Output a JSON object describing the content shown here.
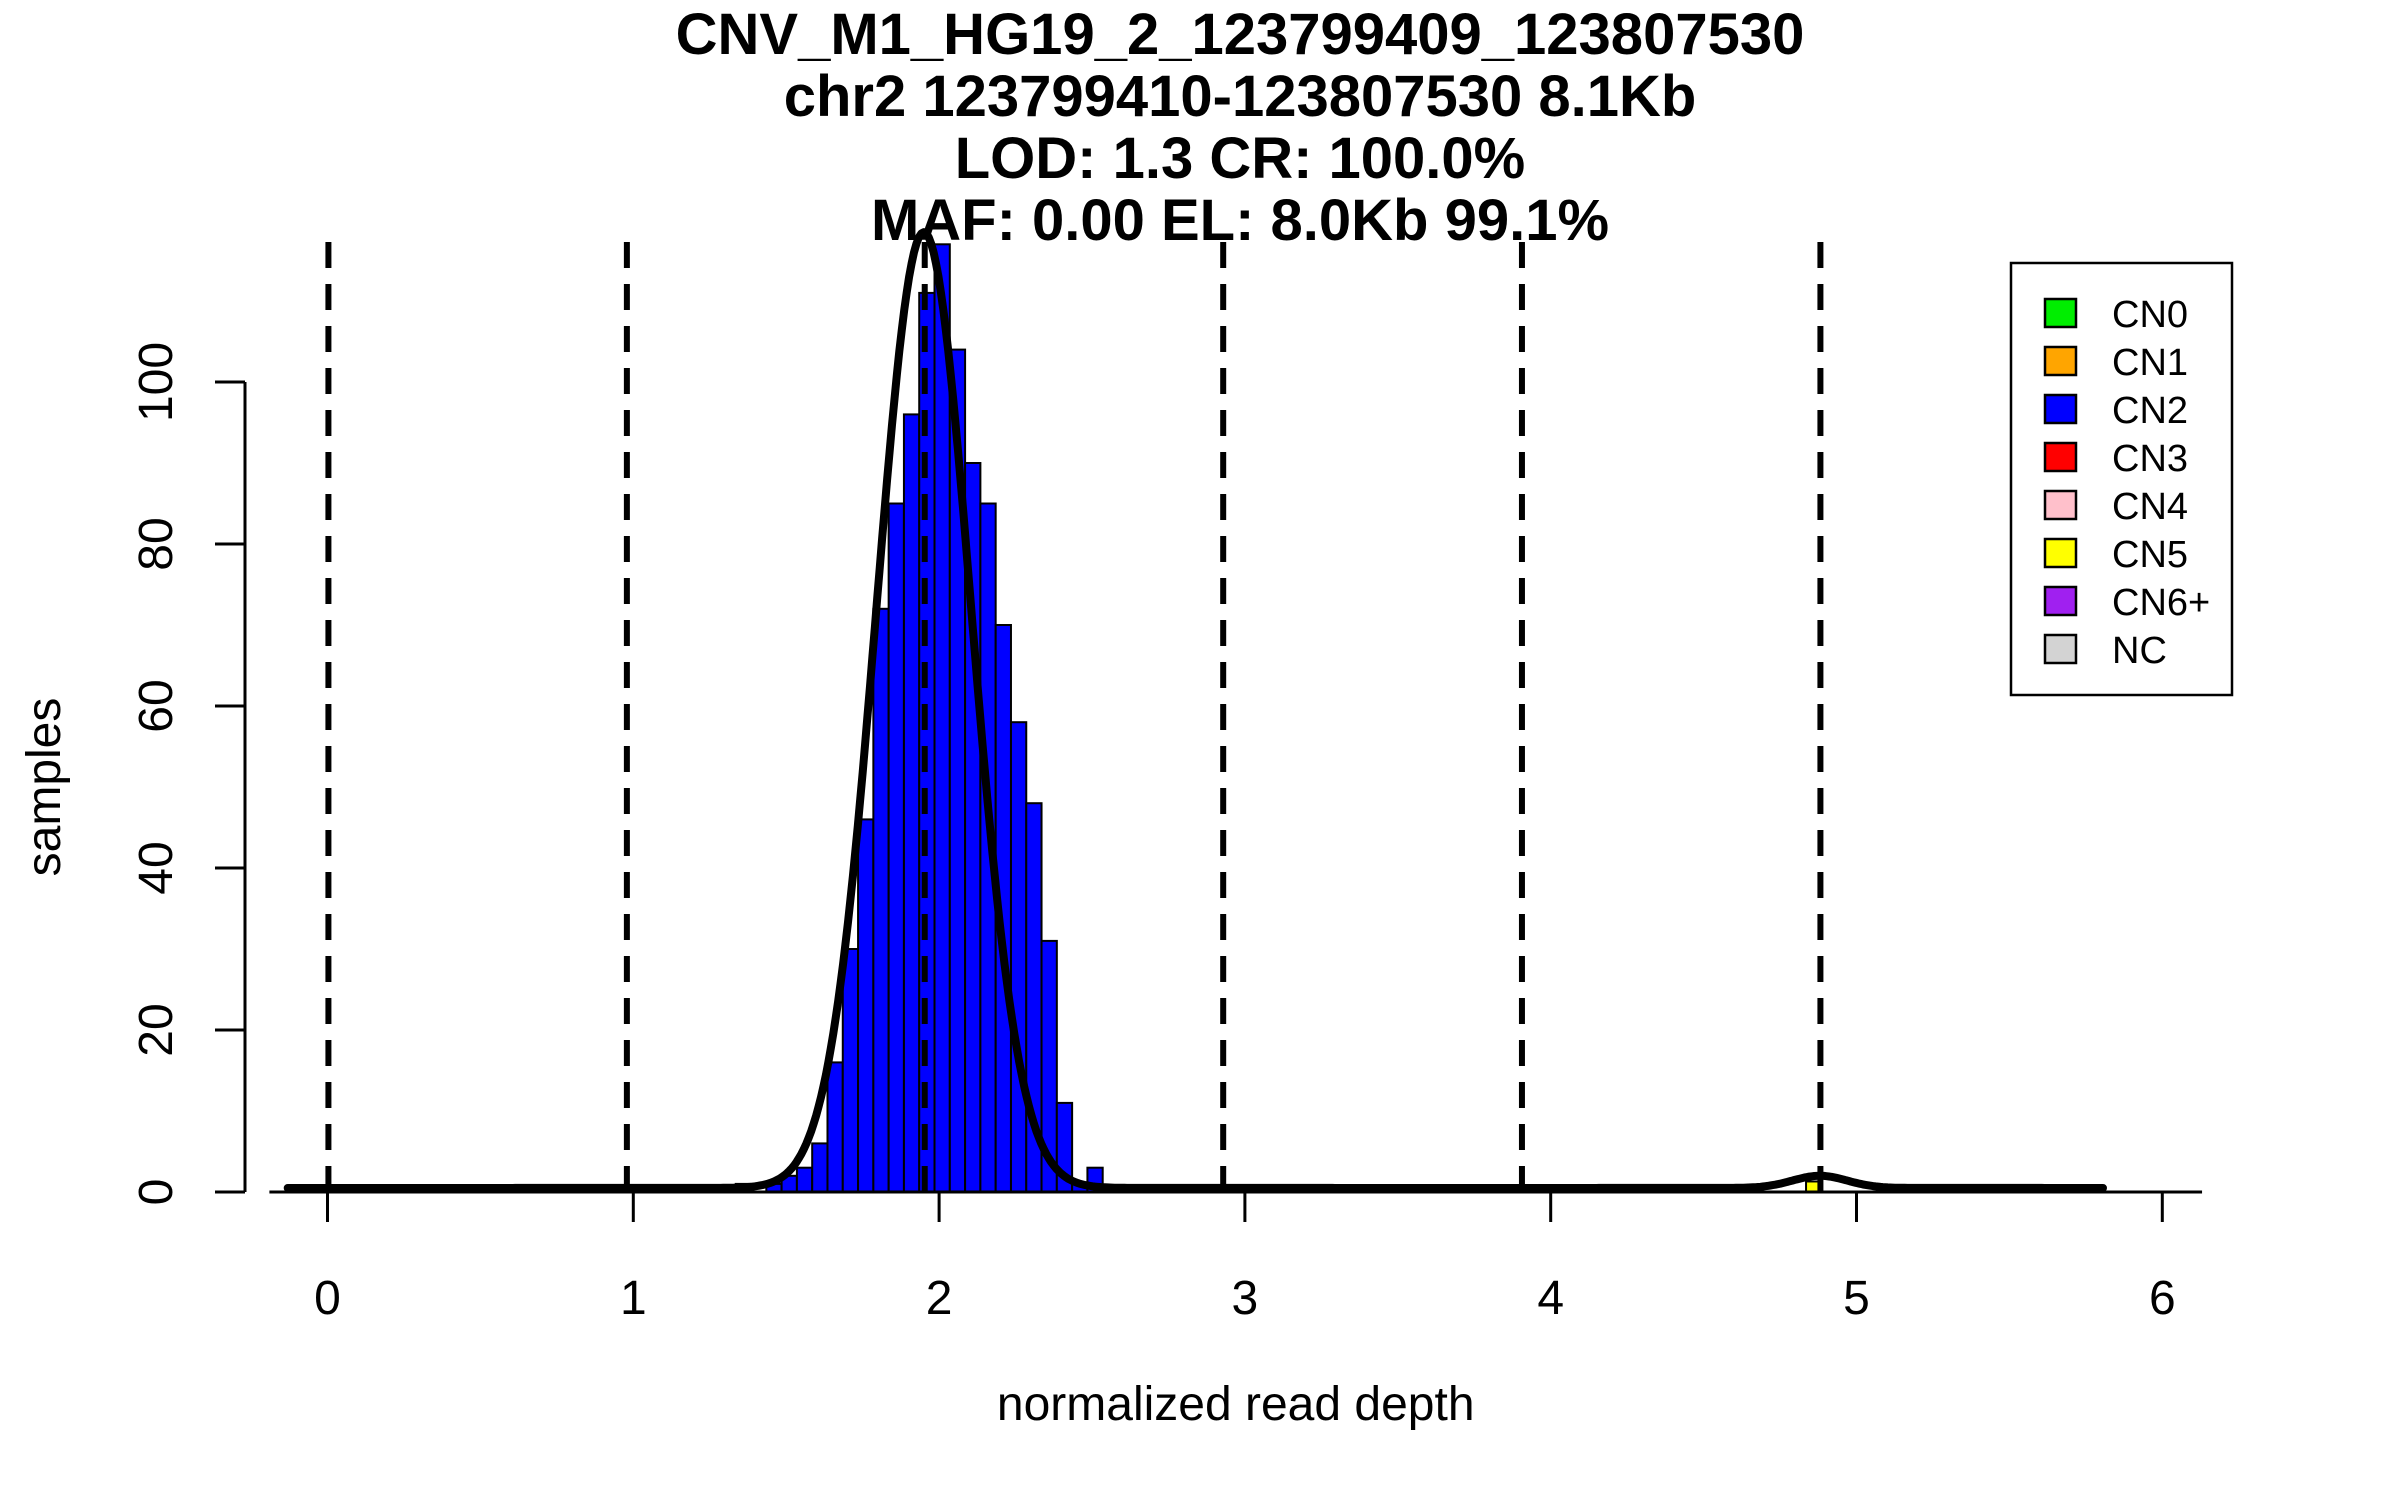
{
  "title": {
    "line1": "CNV_M1_HG19_2_123799409_123807530",
    "line2": "chr2 123799410-123807530 8.1Kb",
    "line3": "LOD: 1.3 CR: 100.0%",
    "line4": "MAF: 0.00 EL: 8.0Kb 99.1%"
  },
  "chart_data": {
    "type": "bar",
    "subtype": "histogram",
    "title": "CNV_M1_HG19_2_123799409_123807530",
    "xlabel": "normalized read depth",
    "ylabel": "samples",
    "x_ticks": [
      0,
      1,
      2,
      3,
      4,
      5,
      6
    ],
    "y_ticks": [
      0,
      20,
      40,
      60,
      80,
      100
    ],
    "xlim": [
      -0.19,
      6.13
    ],
    "ylim": [
      0,
      119
    ],
    "grid": "off",
    "bin_width": 0.05,
    "histogram": [
      {
        "x": 1.335,
        "h": 1
      },
      {
        "x": 1.435,
        "h": 1
      },
      {
        "x": 1.485,
        "h": 2
      },
      {
        "x": 1.535,
        "h": 3
      },
      {
        "x": 1.585,
        "h": 6
      },
      {
        "x": 1.635,
        "h": 16
      },
      {
        "x": 1.685,
        "h": 30
      },
      {
        "x": 1.735,
        "h": 46
      },
      {
        "x": 1.785,
        "h": 72
      },
      {
        "x": 1.835,
        "h": 85
      },
      {
        "x": 1.885,
        "h": 96
      },
      {
        "x": 1.935,
        "h": 111
      },
      {
        "x": 1.985,
        "h": 117
      },
      {
        "x": 2.035,
        "h": 104
      },
      {
        "x": 2.085,
        "h": 90
      },
      {
        "x": 2.135,
        "h": 85
      },
      {
        "x": 2.185,
        "h": 70
      },
      {
        "x": 2.235,
        "h": 58
      },
      {
        "x": 2.285,
        "h": 48
      },
      {
        "x": 2.335,
        "h": 31
      },
      {
        "x": 2.385,
        "h": 11
      },
      {
        "x": 2.435,
        "h": 1
      },
      {
        "x": 2.485,
        "h": 3
      }
    ],
    "outlier_bars": [
      {
        "x": 0.0,
        "w": 0.2,
        "h": 0.8,
        "cn": "NC"
      },
      {
        "x": 0.55,
        "w": 0.25,
        "h": 0.8,
        "cn": "NC"
      },
      {
        "x": 4.835,
        "w": 0.05,
        "h": 1.3,
        "cn": "CN5"
      },
      {
        "x": 5.5,
        "w": 0.3,
        "h": 0.7,
        "cn": "NC"
      }
    ],
    "main_series_cn": "CN2",
    "dashed_lines": {
      "positions": [
        0.003,
        0.979,
        1.953,
        2.929,
        3.906,
        4.882
      ],
      "labels": [
        "CN0",
        "CN1",
        "CN2",
        "CN3",
        "CN4",
        "CN5"
      ]
    },
    "density_curve": {
      "mean": 1.95,
      "sigma": 0.155,
      "amplitude": 118,
      "baseline": 0.5,
      "x_range": [
        -0.13,
        5.81
      ],
      "cn5_bump": {
        "mean": 4.88,
        "sigma": 0.09,
        "amplitude": 1.5
      }
    },
    "colors": {
      "CN0": "#00EE00",
      "CN1": "#FFA500",
      "CN2": "#0000FF",
      "CN3": "#FF0000",
      "CN4": "#FFC0CB",
      "CN5": "#FFFF00",
      "CN6+": "#A020F0",
      "NC": "#D3D3D3",
      "axis": "#000000",
      "curve": "#000000"
    },
    "legend_position": "top-right"
  },
  "legend": {
    "items": [
      {
        "label": "CN0",
        "color": "#00EE00"
      },
      {
        "label": "CN1",
        "color": "#FFA500"
      },
      {
        "label": "CN2",
        "color": "#0000FF"
      },
      {
        "label": "CN3",
        "color": "#FF0000"
      },
      {
        "label": "CN4",
        "color": "#FFC0CB"
      },
      {
        "label": "CN5",
        "color": "#FFFF00"
      },
      {
        "label": "CN6+",
        "color": "#A020F0"
      },
      {
        "label": "NC",
        "color": "#D3D3D3"
      }
    ]
  }
}
